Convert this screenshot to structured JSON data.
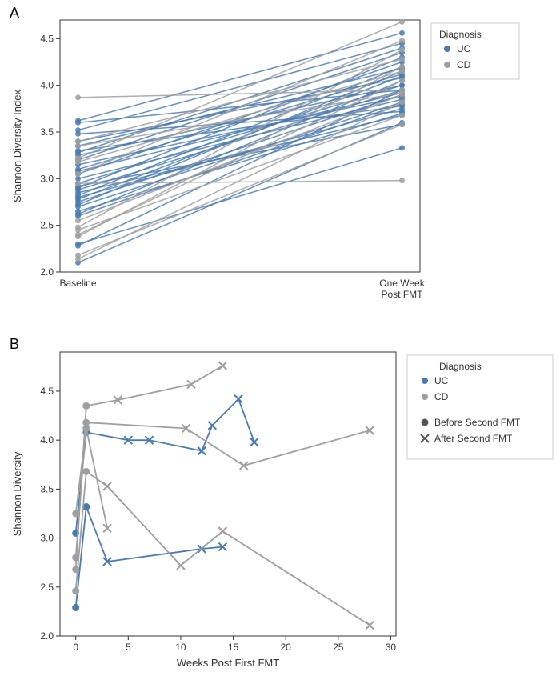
{
  "colors": {
    "uc": "#4a7ab0",
    "cd": "#9f9f9f",
    "axis": "#333333",
    "text": "#333333",
    "bg": "#ffffff"
  },
  "panelA": {
    "label": "A",
    "ylabel": "Shannon Diversity Index",
    "ylim": [
      2.0,
      4.7
    ],
    "yticks": [
      2.0,
      2.5,
      3.0,
      3.5,
      4.0,
      4.5
    ],
    "xcats": [
      "Baseline",
      "One Week\nPost FMT"
    ],
    "legend": {
      "title": "Diagnosis",
      "items": [
        {
          "label": "UC",
          "color": "#4a7ab0"
        },
        {
          "label": "CD",
          "color": "#9f9f9f"
        }
      ]
    },
    "lines": [
      {
        "g": "UC",
        "y0": 2.1,
        "y1": 3.6
      },
      {
        "g": "UC",
        "y0": 2.28,
        "y1": 3.95
      },
      {
        "g": "UC",
        "y0": 2.3,
        "y1": 3.33
      },
      {
        "g": "UC",
        "y0": 2.6,
        "y1": 3.8
      },
      {
        "g": "UC",
        "y0": 2.62,
        "y1": 4.05
      },
      {
        "g": "UC",
        "y0": 2.65,
        "y1": 3.7
      },
      {
        "g": "UC",
        "y0": 2.7,
        "y1": 3.82
      },
      {
        "g": "UC",
        "y0": 2.72,
        "y1": 4.15
      },
      {
        "g": "UC",
        "y0": 2.75,
        "y1": 3.9
      },
      {
        "g": "UC",
        "y0": 2.78,
        "y1": 4.1
      },
      {
        "g": "UC",
        "y0": 2.8,
        "y1": 3.75
      },
      {
        "g": "UC",
        "y0": 2.82,
        "y1": 4.2
      },
      {
        "g": "UC",
        "y0": 2.85,
        "y1": 3.68
      },
      {
        "g": "UC",
        "y0": 2.88,
        "y1": 3.95
      },
      {
        "g": "UC",
        "y0": 2.9,
        "y1": 4.3
      },
      {
        "g": "UC",
        "y0": 2.92,
        "y1": 3.58
      },
      {
        "g": "UC",
        "y0": 2.95,
        "y1": 4.0
      },
      {
        "g": "UC",
        "y0": 3.0,
        "y1": 3.85
      },
      {
        "g": "UC",
        "y0": 3.05,
        "y1": 4.25
      },
      {
        "g": "UC",
        "y0": 3.08,
        "y1": 3.92
      },
      {
        "g": "UC",
        "y0": 3.1,
        "y1": 4.12
      },
      {
        "g": "UC",
        "y0": 3.15,
        "y1": 3.88
      },
      {
        "g": "UC",
        "y0": 3.2,
        "y1": 4.35
      },
      {
        "g": "UC",
        "y0": 3.25,
        "y1": 4.0
      },
      {
        "g": "UC",
        "y0": 3.28,
        "y1": 4.4
      },
      {
        "g": "UC",
        "y0": 3.3,
        "y1": 3.78
      },
      {
        "g": "UC",
        "y0": 3.35,
        "y1": 4.18
      },
      {
        "g": "UC",
        "y0": 3.4,
        "y1": 4.08
      },
      {
        "g": "UC",
        "y0": 3.48,
        "y1": 3.72
      },
      {
        "g": "UC",
        "y0": 3.52,
        "y1": 4.45
      },
      {
        "g": "UC",
        "y0": 3.6,
        "y1": 3.95
      },
      {
        "g": "UC",
        "y0": 3.62,
        "y1": 4.56
      },
      {
        "g": "CD",
        "y0": 2.14,
        "y1": 3.82
      },
      {
        "g": "CD",
        "y0": 2.18,
        "y1": 3.58
      },
      {
        "g": "CD",
        "y0": 2.38,
        "y1": 4.2
      },
      {
        "g": "CD",
        "y0": 2.4,
        "y1": 4.05
      },
      {
        "g": "CD",
        "y0": 2.45,
        "y1": 3.68
      },
      {
        "g": "CD",
        "y0": 2.48,
        "y1": 4.38
      },
      {
        "g": "CD",
        "y0": 2.55,
        "y1": 3.9
      },
      {
        "g": "CD",
        "y0": 2.95,
        "y1": 2.98
      },
      {
        "g": "CD",
        "y0": 3.05,
        "y1": 4.48
      },
      {
        "g": "CD",
        "y0": 3.18,
        "y1": 4.15
      },
      {
        "g": "CD",
        "y0": 3.35,
        "y1": 3.92
      },
      {
        "g": "CD",
        "y0": 3.4,
        "y1": 4.28
      },
      {
        "g": "CD",
        "y0": 3.87,
        "y1": 3.95
      },
      {
        "g": "CD",
        "y0": 3.22,
        "y1": 4.68
      }
    ]
  },
  "panelB": {
    "label": "B",
    "xlabel": "Weeks Post First FMT",
    "ylabel": "Shannon Diversity",
    "ylim": [
      2.0,
      4.9
    ],
    "yticks": [
      2.0,
      2.5,
      3.0,
      3.5,
      4.0,
      4.5
    ],
    "xlim": [
      -1.5,
      30.5
    ],
    "xticks": [
      0,
      5,
      10,
      15,
      20,
      25,
      30
    ],
    "legend": {
      "title": "Diagnosis",
      "color_items": [
        {
          "label": "UC",
          "color": "#4a7ab0"
        },
        {
          "label": "CD",
          "color": "#9f9f9f"
        }
      ],
      "marker_items": [
        {
          "label": "Before Second FMT",
          "marker": "circle"
        },
        {
          "label": "After Second FMT",
          "marker": "x"
        }
      ]
    },
    "series": [
      {
        "g": "UC",
        "pts": [
          {
            "x": 0,
            "y": 3.05,
            "m": "c"
          },
          {
            "x": 1,
            "y": 4.08,
            "m": "c"
          },
          {
            "x": 5,
            "y": 4.0,
            "m": "x"
          },
          {
            "x": 7,
            "y": 4.0,
            "m": "x"
          },
          {
            "x": 12,
            "y": 3.89,
            "m": "x"
          },
          {
            "x": 13,
            "y": 4.15,
            "m": "x"
          },
          {
            "x": 15.5,
            "y": 4.42,
            "m": "x"
          },
          {
            "x": 17,
            "y": 3.98,
            "m": "x"
          }
        ]
      },
      {
        "g": "UC",
        "pts": [
          {
            "x": 0,
            "y": 2.29,
            "m": "c"
          },
          {
            "x": 1,
            "y": 3.32,
            "m": "c"
          },
          {
            "x": 3,
            "y": 2.76,
            "m": "x"
          },
          {
            "x": 12,
            "y": 2.89,
            "m": "x"
          },
          {
            "x": 14,
            "y": 2.91,
            "m": "x"
          }
        ]
      },
      {
        "g": "CD",
        "pts": [
          {
            "x": 0,
            "y": 2.68,
            "m": "c"
          },
          {
            "x": 1,
            "y": 4.35,
            "m": "c"
          },
          {
            "x": 4,
            "y": 4.41,
            "m": "x"
          },
          {
            "x": 11,
            "y": 4.57,
            "m": "x"
          },
          {
            "x": 14,
            "y": 4.76,
            "m": "x"
          }
        ]
      },
      {
        "g": "CD",
        "pts": [
          {
            "x": 0,
            "y": 2.8,
            "m": "c"
          },
          {
            "x": 1,
            "y": 4.18,
            "m": "c"
          },
          {
            "x": 10.5,
            "y": 4.12,
            "m": "x"
          },
          {
            "x": 16,
            "y": 3.74,
            "m": "x"
          },
          {
            "x": 28,
            "y": 4.1,
            "m": "x"
          }
        ]
      },
      {
        "g": "CD",
        "pts": [
          {
            "x": 0,
            "y": 2.46,
            "m": "c"
          },
          {
            "x": 1,
            "y": 3.68,
            "m": "c"
          },
          {
            "x": 3,
            "y": 3.53,
            "m": "x"
          },
          {
            "x": 10,
            "y": 2.72,
            "m": "x"
          },
          {
            "x": 14,
            "y": 3.07,
            "m": "x"
          },
          {
            "x": 28,
            "y": 2.11,
            "m": "x"
          }
        ]
      },
      {
        "g": "CD",
        "pts": [
          {
            "x": 0,
            "y": 3.25,
            "m": "c"
          },
          {
            "x": 1,
            "y": 4.12,
            "m": "c"
          },
          {
            "x": 3,
            "y": 3.1,
            "m": "x"
          }
        ]
      }
    ]
  }
}
